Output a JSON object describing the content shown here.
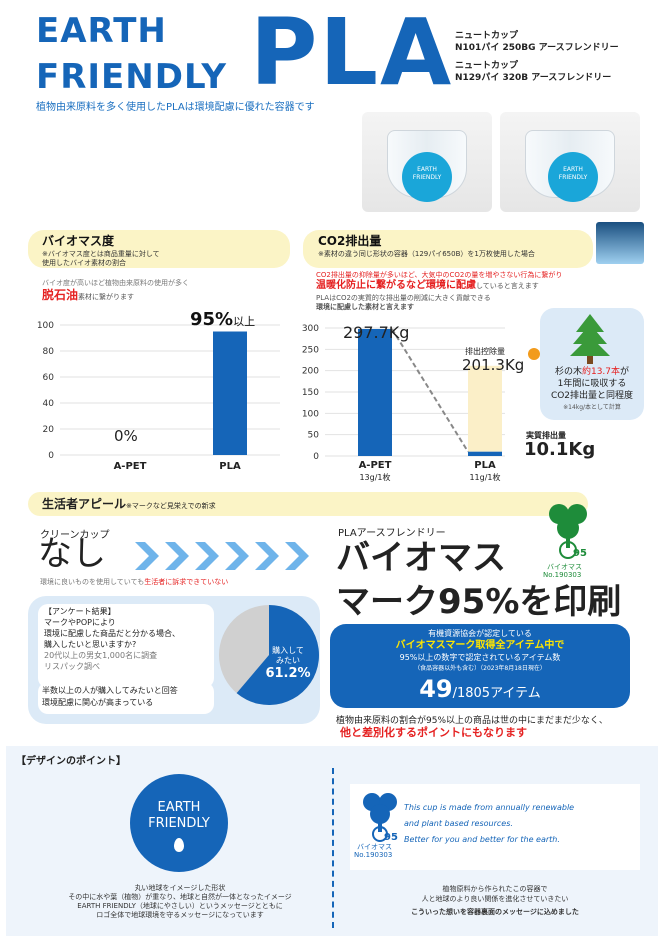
{
  "header": {
    "earth": "EARTH",
    "friendly": "FRIENDLY",
    "pla": "PLA",
    "product1_line1": "ニュートカップ",
    "product1_line2": "N101パイ 250BG アースフレンドリー",
    "product2_line1": "ニュートカップ",
    "product2_line2": "N129パイ 320B アースフレンドリー",
    "subtitle": "植物由来原料を多く使用したPLAは環境配慮に優れた容器です"
  },
  "cup_logo": "EARTH FRIENDLY",
  "biomass": {
    "title": "バイオマス度",
    "note1": "※バイオマス度とは商品重量に対して",
    "note2": "使用したバイオ素材の割合",
    "desc1": "バイオ度が高いほど植物由来原料の使用が多く",
    "desc_red": "脱石油",
    "desc2": "素材に繋がります",
    "pla_value_label": "95%",
    "pla_value_suffix": "以上",
    "apet_value_label": "0%"
  },
  "co2": {
    "title": "CO2排出量",
    "note": "※素材の違う同じ形状の容器（129パイ650B）を1万枚使用した場合",
    "desc1": "CO2排出量の抑除量が多いほど、大気中のCO2の量を増やさない行為に繋がり",
    "desc2_red": "温暖化防止に繋がるなど環境に配慮",
    "desc2_rest": "していると言えます",
    "desc3": "PLAはCO2の実質的な排出量の削減に大きく貢献できる",
    "desc4": "環境に配慮した素材と言えます",
    "apet_value": "297.7Kg",
    "reduction_label": "排出控除量",
    "reduction_value": "201.3Kg",
    "actual_label": "実質排出量",
    "actual_value": "10.1Kg",
    "tree_text1": "杉の木",
    "tree_text_red": "約13.7本",
    "tree_text2": "が",
    "tree_text3": "1年間に吸収する",
    "tree_text4": "CO2排出量と同程度",
    "tree_note": "※14kg/本として計算"
  },
  "chart_data": [
    {
      "type": "bar",
      "title": "バイオマス度",
      "categories": [
        "A-PET",
        "PLA"
      ],
      "values": [
        0,
        95
      ],
      "ylim": [
        0,
        100
      ],
      "yticks": [
        "0",
        "20",
        "40",
        "60",
        "80",
        "100"
      ]
    },
    {
      "type": "bar",
      "title": "CO2排出量",
      "categories": [
        "A-PET",
        "PLA"
      ],
      "category_sub": [
        "13g/1枚",
        "11g/1枚"
      ],
      "values": [
        297.7,
        10.1
      ],
      "reduction": 201.3,
      "ylim": [
        0,
        300
      ],
      "yticks": [
        "0",
        "50",
        "100",
        "150",
        "200",
        "250",
        "300"
      ]
    }
  ],
  "appeal": {
    "title": "生活者アピール",
    "title_note": "※マークなど見栄えでの新求",
    "clean_label": "クリーンカップ",
    "nashi": "なし",
    "clean_note1": "環境に良いものを使用していても",
    "clean_note_red": "生活者に訴求できていない",
    "pla_label": "PLAアースフレンドリー",
    "headline1": "バイオマス",
    "headline2": "マーク95%を印刷",
    "mark_no": "No.190303",
    "mark_caption": "バイオマス"
  },
  "survey": {
    "title": "【アンケート結果】",
    "q1": "マークやPOPにより",
    "q2": "環境に配慮した商品だと分かる場合、",
    "q3": "購入したいと思いますか?",
    "src1": "20代以上の男女1,000名に調査",
    "src2": "リスパック調べ",
    "result1": "半数以上の人が購入してみたいと回答",
    "result2": "環境配慮に関心が高まっている",
    "pie_label1": "購入して",
    "pie_label2": "みたい",
    "pie_value": "61.2%",
    "pie_fraction": 0.612
  },
  "assoc": {
    "line1": "有機資源協会が認定している",
    "line2": "バイオマスマーク取得全アイテム中で",
    "line3": "95%以上の数字で認定されているアイテム数",
    "line4": "（食品容器以外も含む）（2023年8月18日現在）",
    "count": "49",
    "total": "/1805アイテム",
    "after1": "植物由来原料の割合が95%以上の商品は世の中にまだまだ少なく、",
    "after2": "他と差別化するポイントにもなります"
  },
  "design": {
    "title": "【デザインのポイント】",
    "logo1": "EARTH",
    "logo2": "FRIENDLY",
    "desc1": "丸い地球をイメージした形状",
    "desc2": "その中に水や葉（植物）が重なり、地球と自然が一体となったイメージ",
    "desc3": "EARTH FRIENDLY（地球にやさしい）というメッセージとともに",
    "desc4": "ロゴ全体で地球環境を守るメッセージになっています",
    "en1": "This cup is made from annually renewable",
    "en2": "and plant based resources.",
    "en3": "Better for you and better for the earth.",
    "mark_caption": "バイオマス",
    "mark_no": "No.190303",
    "msg1": "植物原料から作られたこの容器で",
    "msg2": "人と地球のより良い関係を進化させていきたい",
    "msg3": "こういった想いを容器裏面のメッセージに込めました"
  },
  "colors": {
    "brand_blue": "#1565b8",
    "accent_red": "#e52222",
    "pill_yellow": "#fbf4c6",
    "light_blue": "#dceaf7"
  }
}
